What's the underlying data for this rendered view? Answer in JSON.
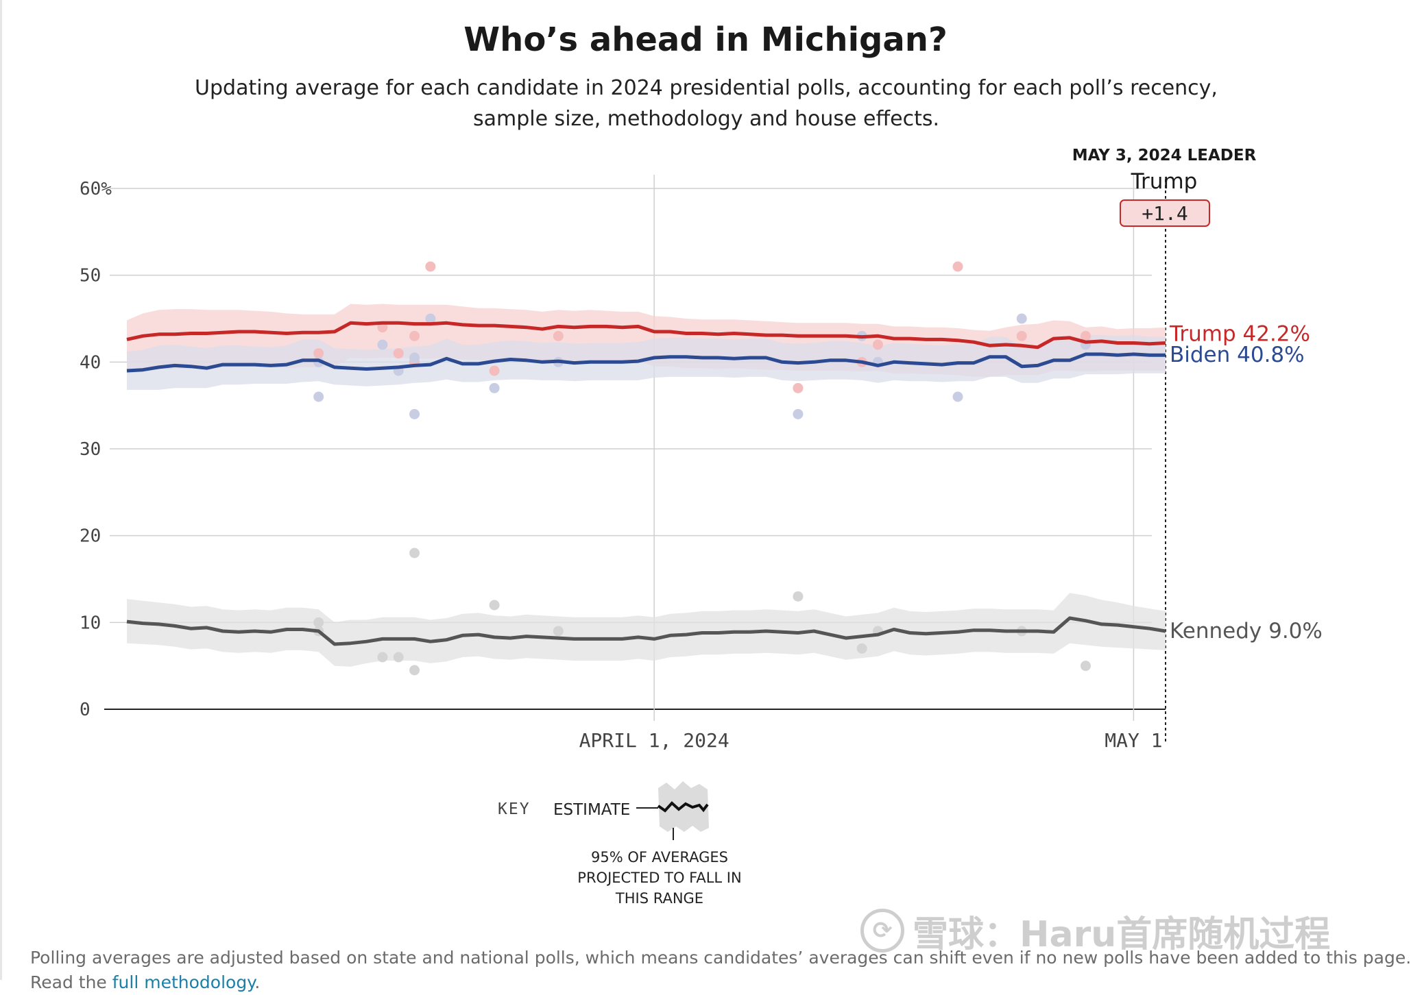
{
  "header": {
    "title": "Who’s ahead in Michigan?",
    "subtitle": "Updating average for each candidate in 2024 presidential polls, accounting for each poll’s recency, sample size, methodology and house effects."
  },
  "leader": {
    "title": "MAY 3, 2024 LEADER",
    "name": "Trump",
    "margin": "+1.4"
  },
  "key": {
    "word": "KEY",
    "estimate": "ESTIMATE",
    "range_lines": [
      "95% OF AVERAGES",
      "PROJECTED TO FALL IN",
      "THIS RANGE"
    ]
  },
  "footnote": {
    "text": "Polling averages are adjusted based on state and national polls, which means candidates’ averages can shift even if no new polls have been added to this page.",
    "line2_prefix": "Read the ",
    "line2_link": "full methodology",
    "line2_suffix": "."
  },
  "watermark": {
    "text": "雪球：Haru首席随机过程"
  },
  "colors": {
    "trump": "#c62828",
    "biden": "#2b4a92",
    "kennedy": "#555555",
    "trump_band": "#f7d2d2",
    "biden_band": "#d9dcea",
    "kennedy_band": "#e2e2e2"
  },
  "chart_data": {
    "type": "line",
    "x_start": "2024-02-28",
    "x_end": "2024-05-03",
    "ylim": [
      0,
      60
    ],
    "yticks": [
      0,
      10,
      20,
      30,
      40,
      50,
      60
    ],
    "ytick_labels": [
      "0",
      "10",
      "20",
      "30",
      "40",
      "50",
      "60%"
    ],
    "xticks": [
      {
        "date": "2024-04-01",
        "label": "APRIL 1, 2024"
      },
      {
        "date": "2024-05-01",
        "label": "MAY 1"
      }
    ],
    "grid": true,
    "series": [
      {
        "name": "Trump",
        "color_key": "trump",
        "end_label": "Trump 42.2%",
        "values": [
          42.6,
          43.0,
          43.2,
          43.2,
          43.3,
          43.3,
          43.4,
          43.5,
          43.5,
          43.4,
          43.3,
          43.4,
          43.4,
          43.5,
          44.5,
          44.4,
          44.5,
          44.5,
          44.4,
          44.4,
          44.5,
          44.3,
          44.2,
          44.2,
          44.1,
          44.0,
          43.8,
          44.1,
          44.0,
          44.1,
          44.1,
          44.0,
          44.1,
          43.5,
          43.5,
          43.3,
          43.3,
          43.2,
          43.3,
          43.2,
          43.1,
          43.1,
          43.0,
          43.0,
          43.0,
          43.0,
          42.9,
          43.0,
          42.7,
          42.7,
          42.6,
          42.6,
          42.5,
          42.3,
          41.9,
          42.0,
          41.9,
          41.7,
          42.7,
          42.8,
          42.3,
          42.4,
          42.2,
          42.2,
          42.1,
          42.2
        ],
        "band_low": [
          38.6,
          39.0,
          39.2,
          39.2,
          39.3,
          39.3,
          39.4,
          39.5,
          39.5,
          39.4,
          39.3,
          39.4,
          39.4,
          39.5,
          40.5,
          40.4,
          40.5,
          40.5,
          40.4,
          40.4,
          40.5,
          40.3,
          40.2,
          40.2,
          40.1,
          40.0,
          39.8,
          40.1,
          40.0,
          40.1,
          40.1,
          40.0,
          40.1,
          39.5,
          39.5,
          39.3,
          39.3,
          39.2,
          39.3,
          39.2,
          39.1,
          39.1,
          39.0,
          39.0,
          39.0,
          39.0,
          38.9,
          39.0,
          38.7,
          38.7,
          38.6,
          38.6,
          38.5,
          38.3,
          38.3,
          38.5,
          38.5,
          38.5,
          39.0,
          39.0,
          38.9,
          39.0,
          39.0,
          39.0,
          39.0,
          39.0
        ],
        "band_high": [
          44.8,
          45.6,
          46.0,
          46.1,
          46.1,
          46.0,
          46.0,
          46.0,
          45.9,
          45.8,
          45.6,
          45.5,
          45.5,
          45.5,
          46.7,
          46.6,
          46.7,
          46.6,
          46.6,
          46.6,
          46.6,
          46.4,
          46.2,
          46.2,
          46.1,
          46.0,
          45.8,
          46.0,
          45.9,
          46.0,
          45.9,
          45.8,
          45.8,
          45.3,
          45.2,
          45.0,
          44.9,
          44.9,
          44.9,
          44.8,
          44.7,
          44.6,
          44.5,
          44.5,
          44.5,
          44.5,
          44.4,
          44.4,
          44.1,
          44.1,
          44.0,
          44.0,
          43.9,
          43.7,
          43.6,
          44.0,
          44.3,
          44.4,
          44.8,
          44.7,
          44.0,
          44.1,
          43.8,
          43.9,
          43.9,
          44.0
        ]
      },
      {
        "name": "Biden",
        "color_key": "biden",
        "end_label": "Biden 40.8%",
        "values": [
          39.0,
          39.1,
          39.4,
          39.6,
          39.5,
          39.3,
          39.7,
          39.7,
          39.7,
          39.6,
          39.7,
          40.2,
          40.2,
          39.4,
          39.3,
          39.2,
          39.3,
          39.4,
          39.6,
          39.7,
          40.4,
          39.8,
          39.8,
          40.1,
          40.3,
          40.2,
          40.0,
          40.1,
          39.9,
          40.0,
          40.0,
          40.0,
          40.1,
          40.5,
          40.6,
          40.6,
          40.5,
          40.5,
          40.4,
          40.5,
          40.5,
          40.0,
          39.9,
          40.0,
          40.2,
          40.2,
          40.0,
          39.6,
          40.0,
          39.9,
          39.8,
          39.7,
          39.9,
          39.9,
          40.6,
          40.6,
          39.5,
          39.6,
          40.2,
          40.2,
          40.9,
          40.9,
          40.8,
          40.9,
          40.8,
          40.8
        ],
        "band_low": [
          36.8,
          36.8,
          36.8,
          37.0,
          37.0,
          37.0,
          37.4,
          37.4,
          37.5,
          37.5,
          37.5,
          37.7,
          37.8,
          37.4,
          37.3,
          37.2,
          37.3,
          37.4,
          37.6,
          37.7,
          38.0,
          37.7,
          37.7,
          37.9,
          38.0,
          38.0,
          37.9,
          37.9,
          37.8,
          37.9,
          37.9,
          37.9,
          37.9,
          38.2,
          38.3,
          38.3,
          38.3,
          38.3,
          38.2,
          38.3,
          38.3,
          37.9,
          37.8,
          37.9,
          38.0,
          38.0,
          37.9,
          37.6,
          37.9,
          37.8,
          37.8,
          37.7,
          37.8,
          37.8,
          38.3,
          38.3,
          37.6,
          37.6,
          38.1,
          38.1,
          38.6,
          38.6,
          38.6,
          38.7,
          38.7,
          38.7
        ],
        "band_high": [
          41.2,
          41.4,
          41.9,
          42.0,
          41.8,
          41.6,
          41.9,
          41.9,
          41.8,
          41.7,
          41.9,
          42.6,
          42.6,
          41.6,
          41.5,
          41.4,
          41.5,
          41.6,
          41.8,
          41.9,
          42.7,
          42.0,
          42.0,
          42.3,
          42.5,
          42.4,
          42.2,
          42.3,
          42.1,
          42.2,
          42.2,
          42.2,
          42.3,
          42.7,
          42.8,
          42.8,
          42.7,
          42.7,
          42.6,
          42.7,
          42.7,
          42.2,
          42.1,
          42.2,
          42.4,
          42.4,
          42.2,
          41.8,
          42.2,
          42.1,
          42.0,
          41.9,
          42.1,
          42.1,
          42.9,
          42.9,
          41.7,
          41.8,
          42.5,
          42.5,
          43.1,
          43.1,
          43.0,
          43.1,
          42.9,
          42.9
        ]
      },
      {
        "name": "Kennedy",
        "color_key": "kennedy",
        "end_label": "Kennedy 9.0%",
        "values": [
          10.1,
          9.9,
          9.8,
          9.6,
          9.3,
          9.4,
          9.0,
          8.9,
          9.0,
          8.9,
          9.2,
          9.2,
          9.0,
          7.5,
          7.6,
          7.8,
          8.1,
          8.1,
          8.1,
          7.8,
          8.0,
          8.5,
          8.6,
          8.3,
          8.2,
          8.4,
          8.3,
          8.2,
          8.1,
          8.1,
          8.1,
          8.1,
          8.3,
          8.1,
          8.5,
          8.6,
          8.8,
          8.8,
          8.9,
          8.9,
          9.0,
          8.9,
          8.8,
          9.0,
          8.6,
          8.2,
          8.4,
          8.6,
          9.2,
          8.8,
          8.7,
          8.8,
          8.9,
          9.1,
          9.1,
          9.0,
          9.0,
          9.0,
          8.9,
          10.5,
          10.2,
          9.8,
          9.7,
          9.5,
          9.3,
          9.0
        ],
        "band_low": [
          7.6,
          7.5,
          7.4,
          7.2,
          6.9,
          7.0,
          6.6,
          6.5,
          6.6,
          6.5,
          6.8,
          6.8,
          6.6,
          5.0,
          4.9,
          5.3,
          5.6,
          5.6,
          5.6,
          5.3,
          5.5,
          6.0,
          6.1,
          5.8,
          5.7,
          5.9,
          5.8,
          5.7,
          5.6,
          5.6,
          5.6,
          5.6,
          5.8,
          5.6,
          6.0,
          6.1,
          6.3,
          6.3,
          6.4,
          6.4,
          6.5,
          6.4,
          6.3,
          6.5,
          6.1,
          5.7,
          5.9,
          6.1,
          6.7,
          6.3,
          6.2,
          6.3,
          6.4,
          6.6,
          6.6,
          6.5,
          6.5,
          6.5,
          6.4,
          7.6,
          7.4,
          7.2,
          7.1,
          7.0,
          6.9,
          6.8
        ],
        "band_high": [
          12.7,
          12.5,
          12.3,
          12.1,
          11.8,
          11.9,
          11.5,
          11.4,
          11.5,
          11.4,
          11.7,
          11.7,
          11.5,
          10.0,
          10.3,
          10.3,
          10.6,
          10.6,
          10.6,
          10.3,
          10.5,
          11.0,
          11.1,
          10.8,
          10.7,
          10.9,
          10.8,
          10.7,
          10.6,
          10.6,
          10.6,
          10.6,
          10.8,
          10.6,
          11.0,
          11.1,
          11.3,
          11.3,
          11.4,
          11.4,
          11.5,
          11.4,
          11.3,
          11.5,
          11.1,
          10.7,
          10.9,
          11.1,
          11.7,
          11.3,
          11.2,
          11.3,
          11.4,
          11.6,
          11.6,
          11.5,
          11.5,
          11.5,
          11.4,
          13.4,
          13.1,
          12.6,
          12.3,
          11.9,
          11.6,
          11.3
        ]
      }
    ],
    "polls": [
      {
        "x_day": 12,
        "trump": 41,
        "biden": 36,
        "kennedy": 10
      },
      {
        "x_day": 12,
        "trump": 40,
        "biden": 40,
        "kennedy": 9
      },
      {
        "x_day": 16,
        "trump": 44,
        "biden": 42,
        "kennedy": 6
      },
      {
        "x_day": 17,
        "trump": 41,
        "biden": 39,
        "kennedy": 6
      },
      {
        "x_day": 18,
        "trump": 43,
        "biden": 34,
        "kennedy": 18
      },
      {
        "x_day": 18,
        "trump": 40,
        "biden": 40.5,
        "kennedy": 4.5
      },
      {
        "x_day": 19,
        "trump": 51,
        "biden": 45,
        "kennedy": null
      },
      {
        "x_day": 23,
        "trump": 39,
        "biden": 37,
        "kennedy": 12
      },
      {
        "x_day": 27,
        "trump": 43,
        "biden": 40,
        "kennedy": 9
      },
      {
        "x_day": 42,
        "trump": 37,
        "biden": 34,
        "kennedy": 13
      },
      {
        "x_day": 46,
        "trump": 40,
        "biden": 43,
        "kennedy": 7
      },
      {
        "x_day": 47,
        "trump": 42,
        "biden": 40,
        "kennedy": 9
      },
      {
        "x_day": 52,
        "trump": 51,
        "biden": 36,
        "kennedy": null
      },
      {
        "x_day": 56,
        "trump": 43,
        "biden": 45,
        "kennedy": 9
      },
      {
        "x_day": 60,
        "trump": 43,
        "biden": 42,
        "kennedy": 5
      }
    ]
  }
}
